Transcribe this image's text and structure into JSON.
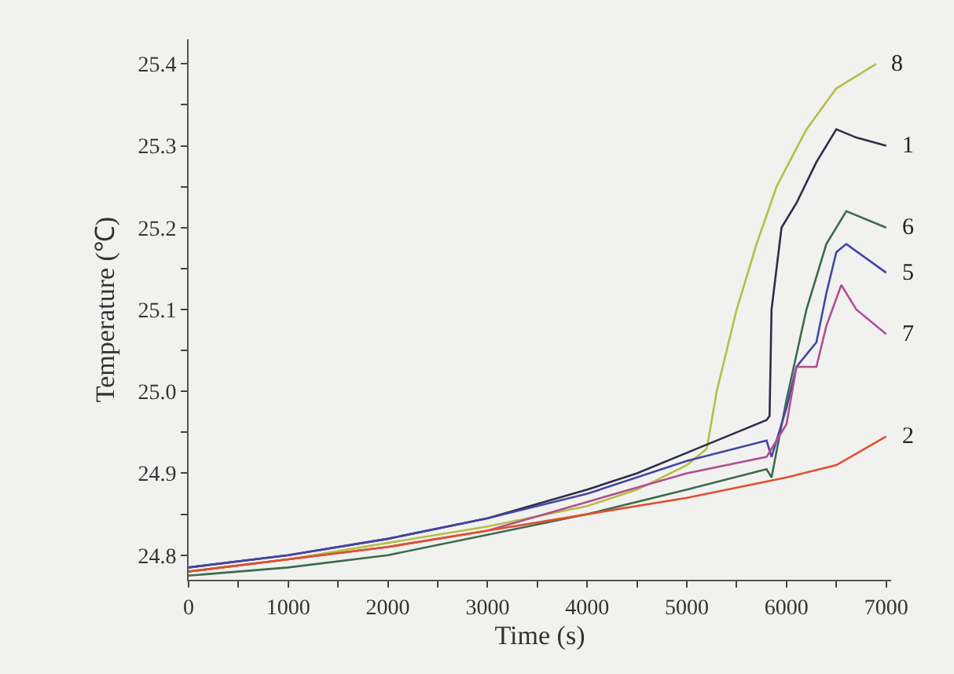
{
  "chart_data": {
    "type": "line",
    "xlabel": "Time (s)",
    "ylabel": "Temperature (℃)",
    "xlim": [
      0,
      7050
    ],
    "ylim": [
      24.77,
      25.43
    ],
    "xticks": [
      0,
      {
        "value": 500,
        "label": null
      },
      1000,
      {
        "value": 1500,
        "label": null
      },
      2000,
      {
        "value": 2500,
        "label": null
      },
      3000,
      {
        "value": 3500,
        "label": null
      },
      4000,
      {
        "value": 4500,
        "label": null
      },
      5000,
      {
        "value": 5500,
        "label": null
      },
      6000,
      {
        "value": 6500,
        "label": null
      },
      7000
    ],
    "yticks": [
      24.8,
      {
        "value": 24.85,
        "label": null
      },
      24.9,
      {
        "value": 24.95,
        "label": null
      },
      {
        "value": 25,
        "label": "25.0"
      },
      {
        "value": 25.05,
        "label": null
      },
      25.1,
      {
        "value": 25.15,
        "label": null
      },
      25.2,
      {
        "value": 25.25,
        "label": null
      },
      25.3,
      {
        "value": 25.35,
        "label": null
      },
      25.4
    ],
    "grid": false,
    "legend": false,
    "marker": "none",
    "line_style": "solid",
    "series": [
      {
        "name": "8",
        "color": "#b5bf45",
        "x": [
          0,
          1000,
          2000,
          3000,
          4000,
          4500,
          5000,
          5200,
          5300,
          5500,
          5700,
          5900,
          6200,
          6500,
          6900
        ],
        "values": [
          24.78,
          24.795,
          24.815,
          24.835,
          24.86,
          24.88,
          24.91,
          24.93,
          25.0,
          25.1,
          25.18,
          25.25,
          25.32,
          25.37,
          25.4
        ]
      },
      {
        "name": "1",
        "color": "#2e2e48",
        "x": [
          0,
          1000,
          2000,
          3000,
          4000,
          4500,
          5000,
          5500,
          5800,
          5830,
          5850,
          5950,
          6100,
          6300,
          6500,
          6700,
          7000
        ],
        "values": [
          24.785,
          24.8,
          24.82,
          24.845,
          24.88,
          24.9,
          24.925,
          24.95,
          24.965,
          24.97,
          25.1,
          25.2,
          25.23,
          25.28,
          25.32,
          25.31,
          25.3
        ]
      },
      {
        "name": "6",
        "color": "#3d6b4c",
        "x": [
          0,
          1000,
          2000,
          3000,
          4000,
          5000,
          5800,
          5850,
          6000,
          6200,
          6400,
          6600,
          7000
        ],
        "values": [
          24.775,
          24.785,
          24.8,
          24.825,
          24.85,
          24.88,
          24.905,
          24.895,
          24.99,
          25.1,
          25.18,
          25.22,
          25.2
        ]
      },
      {
        "name": "5",
        "color": "#4545a5",
        "x": [
          0,
          1000,
          2000,
          3000,
          4000,
          5000,
          5800,
          5850,
          5900,
          6000,
          6100,
          6300,
          6400,
          6500,
          6600,
          7000
        ],
        "values": [
          24.785,
          24.8,
          24.82,
          24.845,
          24.875,
          24.915,
          24.94,
          24.92,
          24.94,
          24.98,
          25.03,
          25.06,
          25.12,
          25.17,
          25.18,
          25.145
        ]
      },
      {
        "name": "7",
        "color": "#b0508f",
        "x": [
          0,
          1000,
          2000,
          3000,
          4000,
          5000,
          5800,
          5850,
          6000,
          6100,
          6300,
          6400,
          6550,
          6700,
          7000
        ],
        "values": [
          24.78,
          24.795,
          24.81,
          24.83,
          24.865,
          24.9,
          24.92,
          24.93,
          24.96,
          25.03,
          25.03,
          25.08,
          25.13,
          25.1,
          25.07
        ]
      },
      {
        "name": "2",
        "color": "#e0502c",
        "x": [
          0,
          1000,
          2000,
          3000,
          4000,
          5000,
          5800,
          6000,
          6500,
          7000
        ],
        "values": [
          24.78,
          24.795,
          24.81,
          24.83,
          24.85,
          24.87,
          24.89,
          24.895,
          24.91,
          24.945
        ]
      }
    ]
  }
}
